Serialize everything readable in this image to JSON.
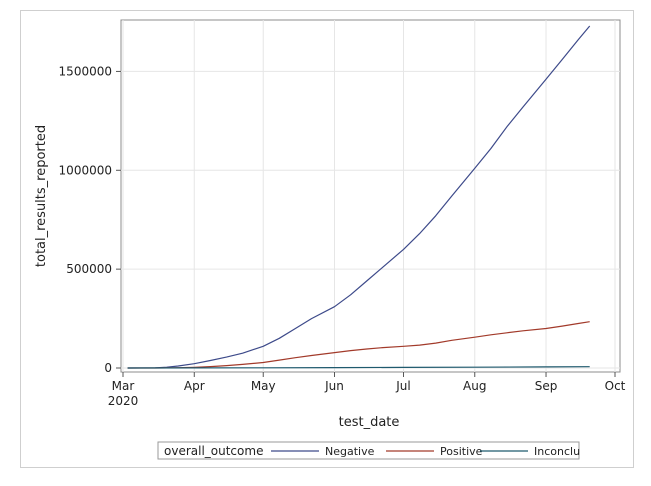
{
  "chart_data": {
    "type": "line",
    "xlabel": "test_date",
    "ylabel": "total_results_reported",
    "x_ticks": [
      "Mar",
      "Apr",
      "May",
      "Jun",
      "Jul",
      "Aug",
      "Sep",
      "Oct"
    ],
    "x_year_label": "2020",
    "x_range": [
      "2020-03-01",
      "2020-10-01"
    ],
    "ylim": [
      0,
      1750000
    ],
    "y_ticks": [
      0,
      500000,
      1000000,
      1500000
    ],
    "grid": true,
    "legend": {
      "title": "overall_outcome",
      "placement": "bottom"
    },
    "series": [
      {
        "name": "Negative",
        "color": "#3d4a8a",
        "x": [
          "2020-03-03",
          "2020-03-15",
          "2020-03-20",
          "2020-03-25",
          "2020-04-01",
          "2020-04-08",
          "2020-04-15",
          "2020-04-22",
          "2020-05-01",
          "2020-05-08",
          "2020-05-15",
          "2020-05-22",
          "2020-06-01",
          "2020-06-08",
          "2020-06-15",
          "2020-06-22",
          "2020-07-01",
          "2020-07-08",
          "2020-07-15",
          "2020-07-22",
          "2020-08-01",
          "2020-08-08",
          "2020-08-15",
          "2020-08-22",
          "2020-09-01",
          "2020-09-08",
          "2020-09-15",
          "2020-09-20"
        ],
        "values": [
          0,
          1000,
          4000,
          10000,
          22000,
          38000,
          55000,
          75000,
          110000,
          150000,
          200000,
          250000,
          310000,
          370000,
          440000,
          510000,
          600000,
          680000,
          770000,
          870000,
          1010000,
          1110000,
          1220000,
          1320000,
          1460000,
          1560000,
          1660000,
          1730000
        ]
      },
      {
        "name": "Positive",
        "color": "#a23a2a",
        "x": [
          "2020-03-03",
          "2020-03-15",
          "2020-03-20",
          "2020-03-25",
          "2020-04-01",
          "2020-04-08",
          "2020-04-15",
          "2020-04-22",
          "2020-05-01",
          "2020-05-08",
          "2020-05-15",
          "2020-05-22",
          "2020-06-01",
          "2020-06-08",
          "2020-06-15",
          "2020-06-22",
          "2020-07-01",
          "2020-07-08",
          "2020-07-15",
          "2020-07-22",
          "2020-08-01",
          "2020-08-08",
          "2020-08-15",
          "2020-08-22",
          "2020-09-01",
          "2020-09-08",
          "2020-09-15",
          "2020-09-20"
        ],
        "values": [
          0,
          0,
          500,
          1500,
          3500,
          7000,
          12000,
          18000,
          28000,
          40000,
          52000,
          63000,
          78000,
          88000,
          96000,
          103000,
          110000,
          116000,
          126000,
          140000,
          156000,
          168000,
          178000,
          188000,
          200000,
          212000,
          225000,
          234000
        ]
      },
      {
        "name": "Inconclu",
        "color": "#1f5a6e",
        "x": [
          "2020-03-03",
          "2020-04-01",
          "2020-05-01",
          "2020-06-01",
          "2020-07-01",
          "2020-08-01",
          "2020-09-01",
          "2020-09-20"
        ],
        "values": [
          0,
          300,
          1000,
          2000,
          3000,
          4000,
          5500,
          6500
        ]
      }
    ]
  }
}
